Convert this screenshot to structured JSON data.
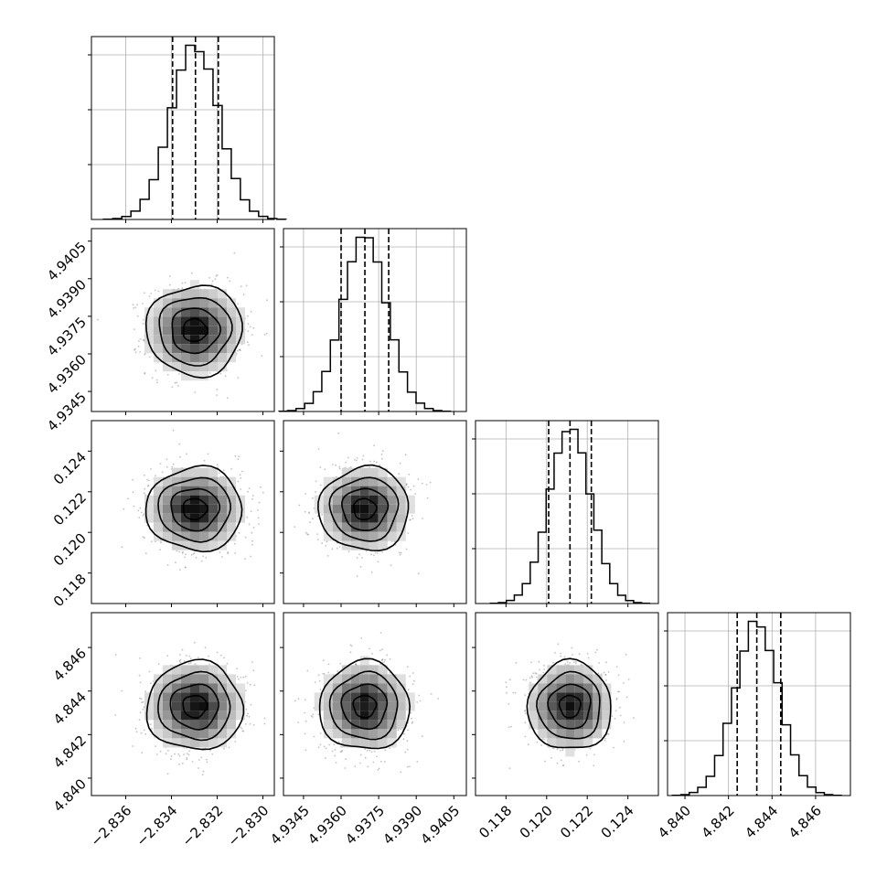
{
  "chart_data": {
    "type": "corner",
    "parameters": 4,
    "grid": true,
    "ranges": [
      [
        -2.8375,
        -2.8295
      ],
      [
        4.9337,
        4.941
      ],
      [
        0.1165,
        0.1255
      ],
      [
        4.8392,
        4.8476
      ]
    ],
    "ticks": [
      {
        "values": [
          -2.836,
          -2.834,
          -2.832,
          -2.83
        ],
        "labels": [
          "−2.836",
          "−2.834",
          "−2.832",
          "−2.830"
        ]
      },
      {
        "values": [
          4.9345,
          4.936,
          4.9375,
          4.939,
          4.9405
        ],
        "labels": [
          "4.9345",
          "4.9360",
          "4.9375",
          "4.9390",
          "4.9405"
        ]
      },
      {
        "values": [
          0.118,
          0.12,
          0.122,
          0.124
        ],
        "labels": [
          "0.118",
          "0.120",
          "0.122",
          "0.124"
        ]
      },
      {
        "values": [
          4.84,
          4.842,
          4.844,
          4.846
        ],
        "labels": [
          "4.840",
          "4.842",
          "4.844",
          "4.846"
        ]
      }
    ],
    "hist_y_ticks": [
      0.3,
      0.6,
      0.9
    ],
    "histograms": [
      {
        "mean": -2.83298,
        "sd": 0.00105,
        "q16": -2.83395,
        "q50": -2.83295,
        "q84": -2.83195
      },
      {
        "mean": 4.93694,
        "sd": 0.0009,
        "q16": 4.936,
        "q50": 4.93695,
        "q84": 4.9379
      },
      {
        "mean": 0.12115,
        "sd": 0.00103,
        "q16": 0.1201,
        "q50": 0.12115,
        "q84": 0.1222
      },
      {
        "mean": 4.8433,
        "sd": 0.00102,
        "q16": 4.8424,
        "q50": 4.8433,
        "q84": 4.8444
      }
    ],
    "contour_levels_sigma": [
      0.5,
      1.0,
      1.5,
      2.0
    ]
  }
}
